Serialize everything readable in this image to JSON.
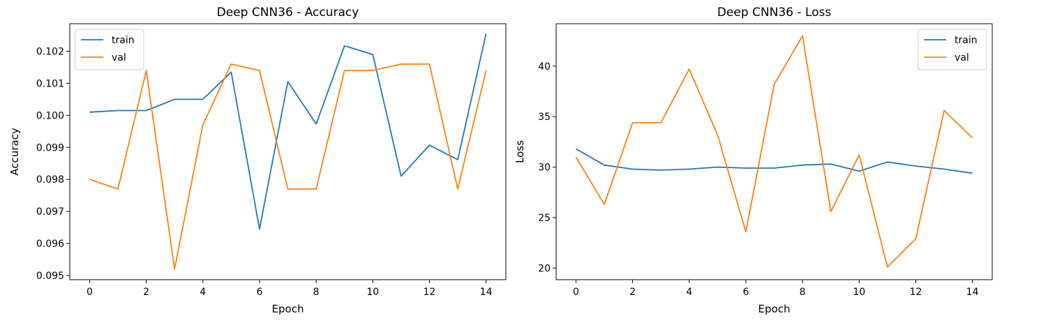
{
  "chart_data": [
    {
      "type": "line",
      "title": "Deep CNN36 - Accuracy",
      "xlabel": "Epoch",
      "ylabel": "Accuracy",
      "x": [
        0,
        1,
        2,
        3,
        4,
        5,
        6,
        7,
        8,
        9,
        10,
        11,
        12,
        13,
        14
      ],
      "xlim": [
        -0.7,
        14.7
      ],
      "ylim": [
        0.09487,
        0.10286
      ],
      "xticks": [
        0,
        2,
        4,
        6,
        8,
        10,
        12,
        14
      ],
      "xtick_labels": [
        "0",
        "2",
        "4",
        "6",
        "8",
        "10",
        "12",
        "14"
      ],
      "yticks": [
        0.095,
        0.096,
        0.097,
        0.098,
        0.099,
        0.1,
        0.101,
        0.102
      ],
      "ytick_labels": [
        "0.095",
        "0.096",
        "0.097",
        "0.098",
        "0.099",
        "0.100",
        "0.101",
        "0.102"
      ],
      "grid": false,
      "legend_position": "top-left",
      "series": [
        {
          "name": "train",
          "color": "#1f77b4",
          "values": [
            0.1001,
            0.10015,
            0.10015,
            0.1005,
            0.1005,
            0.10135,
            0.09645,
            0.10105,
            0.09973,
            0.10217,
            0.1019,
            0.0981,
            0.09907,
            0.09862,
            0.10255
          ]
        },
        {
          "name": "val",
          "color": "#ff7f0e",
          "values": [
            0.098,
            0.0977,
            0.1014,
            0.0952,
            0.0997,
            0.1016,
            0.1014,
            0.0977,
            0.0977,
            0.1014,
            0.1014,
            0.1016,
            0.1016,
            0.0977,
            0.1014
          ]
        }
      ]
    },
    {
      "type": "line",
      "title": "Deep CNN36 - Loss",
      "xlabel": "Epoch",
      "ylabel": "Loss",
      "x": [
        0,
        1,
        2,
        3,
        4,
        5,
        6,
        7,
        8,
        9,
        10,
        11,
        12,
        13,
        14
      ],
      "xlim": [
        -0.7,
        14.7
      ],
      "ylim": [
        18.85,
        44.2
      ],
      "xticks": [
        0,
        2,
        4,
        6,
        8,
        10,
        12,
        14
      ],
      "xtick_labels": [
        "0",
        "2",
        "4",
        "6",
        "8",
        "10",
        "12",
        "14"
      ],
      "yticks": [
        20,
        25,
        30,
        35,
        40
      ],
      "ytick_labels": [
        "20",
        "25",
        "30",
        "35",
        "40"
      ],
      "grid": false,
      "legend_position": "top-right",
      "series": [
        {
          "name": "train",
          "color": "#1f77b4",
          "values": [
            31.8,
            30.2,
            29.8,
            29.7,
            29.8,
            30.0,
            29.9,
            29.9,
            30.2,
            30.3,
            29.6,
            30.5,
            30.1,
            29.8,
            29.4
          ]
        },
        {
          "name": "val",
          "color": "#ff7f0e",
          "values": [
            31.0,
            26.3,
            34.4,
            34.4,
            39.7,
            33.2,
            23.6,
            38.2,
            43.0,
            25.6,
            31.2,
            20.1,
            22.9,
            35.6,
            32.9
          ]
        }
      ]
    }
  ]
}
